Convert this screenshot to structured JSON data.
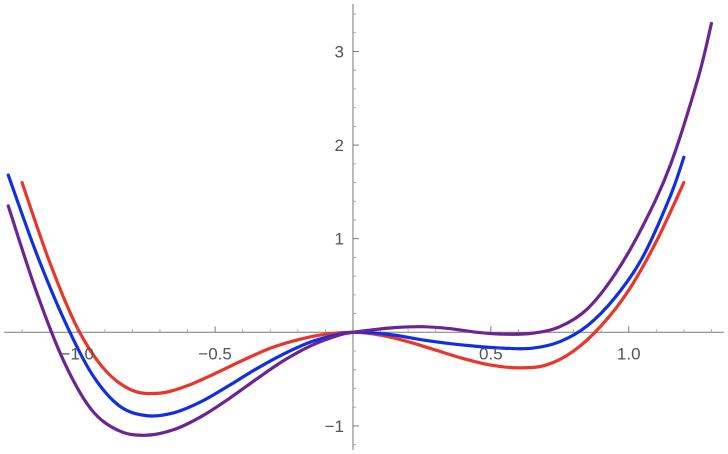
{
  "chart_data": {
    "type": "line",
    "title": "",
    "xlabel": "",
    "ylabel": "",
    "xlim": [
      -1.28,
      1.36
    ],
    "ylim": [
      -1.3,
      3.55
    ],
    "x_ticks": [
      {
        "value": -1.0,
        "label": "−1.0"
      },
      {
        "value": -0.5,
        "label": "−0.5"
      },
      {
        "value": 0.5,
        "label": "0.5"
      },
      {
        "value": 1.0,
        "label": "1.0"
      }
    ],
    "y_ticks": [
      {
        "value": -1,
        "label": "−1"
      },
      {
        "value": 1,
        "label": "1"
      },
      {
        "value": 2,
        "label": "2"
      },
      {
        "value": 3,
        "label": "3"
      }
    ],
    "grid": false,
    "legend": "none",
    "series": [
      {
        "color": "#e8362a",
        "x_range": [
          -1.2,
          1.2
        ],
        "x": [
          -1.2,
          -1.1,
          -1.0,
          -0.9,
          -0.8,
          -0.7,
          -0.6,
          -0.5,
          -0.4,
          -0.3,
          -0.2,
          -0.1,
          0.0,
          0.1,
          0.2,
          0.3,
          0.4,
          0.5,
          0.6,
          0.7,
          0.8,
          0.9,
          1.0,
          1.1,
          1.2
        ],
        "values": [
          1.6,
          0.75,
          0.05,
          -0.4,
          -0.62,
          -0.65,
          -0.57,
          -0.44,
          -0.3,
          -0.17,
          -0.08,
          -0.02,
          0.0,
          -0.03,
          -0.1,
          -0.19,
          -0.28,
          -0.35,
          -0.38,
          -0.35,
          -0.2,
          0.07,
          0.45,
          0.97,
          1.6
        ]
      },
      {
        "color": "#0f2fe0",
        "x_range": [
          -1.25,
          1.2
        ],
        "x": [
          -1.25,
          -1.15,
          -1.05,
          -0.95,
          -0.85,
          -0.75,
          -0.65,
          -0.55,
          -0.45,
          -0.35,
          -0.25,
          -0.15,
          -0.05,
          0.0,
          0.05,
          0.15,
          0.25,
          0.35,
          0.45,
          0.55,
          0.65,
          0.75,
          0.85,
          0.95,
          1.05,
          1.15,
          1.2
        ],
        "values": [
          1.68,
          0.86,
          0.15,
          -0.43,
          -0.78,
          -0.89,
          -0.86,
          -0.74,
          -0.57,
          -0.39,
          -0.23,
          -0.1,
          -0.02,
          0.0,
          0.0,
          -0.03,
          -0.08,
          -0.12,
          -0.15,
          -0.17,
          -0.17,
          -0.1,
          0.07,
          0.37,
          0.8,
          1.45,
          1.87
        ]
      },
      {
        "color": "#6c2590",
        "x_range": [
          -1.25,
          1.3
        ],
        "x": [
          -1.25,
          -1.15,
          -1.05,
          -0.95,
          -0.85,
          -0.75,
          -0.65,
          -0.55,
          -0.45,
          -0.35,
          -0.25,
          -0.15,
          -0.05,
          0.0,
          0.05,
          0.15,
          0.25,
          0.35,
          0.45,
          0.55,
          0.65,
          0.75,
          0.85,
          0.95,
          1.05,
          1.15,
          1.25,
          1.3
        ],
        "values": [
          1.35,
          0.45,
          -0.3,
          -0.82,
          -1.05,
          -1.1,
          -1.04,
          -0.9,
          -0.71,
          -0.5,
          -0.3,
          -0.14,
          -0.03,
          0.0,
          0.02,
          0.05,
          0.06,
          0.04,
          0.0,
          -0.02,
          -0.01,
          0.06,
          0.25,
          0.62,
          1.13,
          1.78,
          2.7,
          3.3
        ]
      }
    ]
  }
}
